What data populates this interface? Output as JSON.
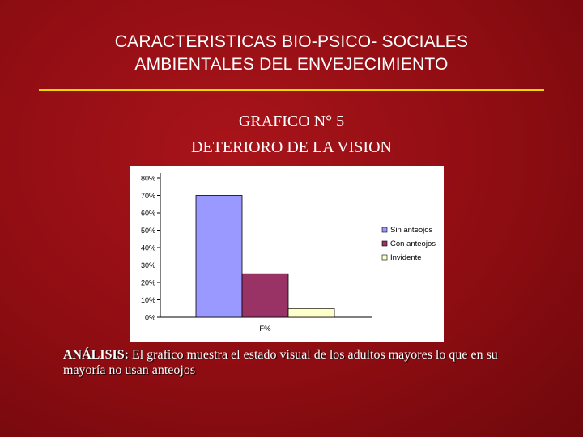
{
  "slide": {
    "title_line1": "CARACTERISTICAS BIO-PSICO- SOCIALES",
    "title_line2": "AMBIENTALES DEL ENVEJECIMIENTO",
    "subtitle_line1": "GRAFICO N° 5",
    "subtitle_line2": "DETERIORO DE LA VISION",
    "analysis_label": "ANÁLISIS:",
    "analysis_text": " El grafico muestra el estado visual de los adultos mayores lo que en su mayoría no usan anteojos"
  },
  "colors": {
    "background": "#8e0d12",
    "rule": "#f2d600",
    "text": "#ffffff"
  },
  "chart_data": {
    "type": "bar",
    "categories": [
      "F%"
    ],
    "series": [
      {
        "name": "Sin anteojos",
        "values": [
          70
        ],
        "color": "#9999ff"
      },
      {
        "name": "Con anteojos",
        "values": [
          25
        ],
        "color": "#993366"
      },
      {
        "name": "Invidente",
        "values": [
          5
        ],
        "color": "#ffffcc"
      }
    ],
    "yticks": [
      "0%",
      "10%",
      "20%",
      "30%",
      "40%",
      "50%",
      "60%",
      "70%",
      "80%"
    ],
    "ylim": [
      0,
      80
    ],
    "grid": false,
    "legend": "right"
  }
}
